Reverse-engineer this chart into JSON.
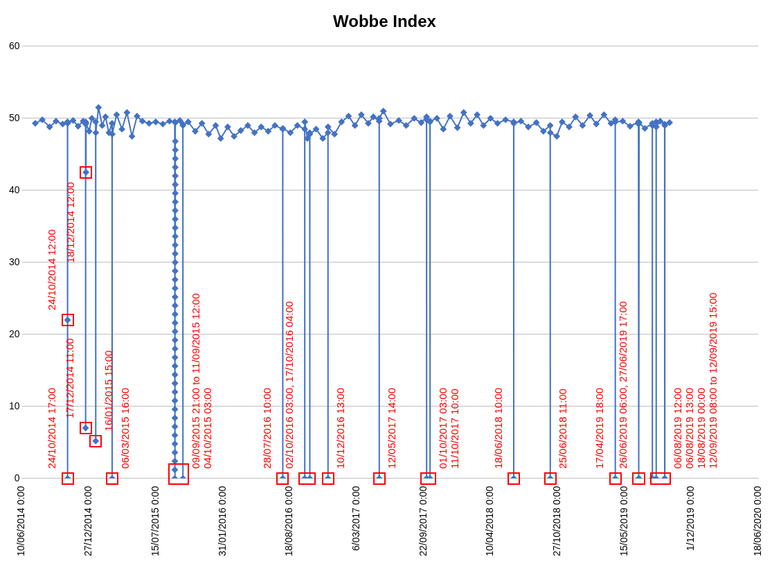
{
  "chart_data": {
    "type": "line",
    "title": "Wobbe Index",
    "xlim": [
      "2014-06-10",
      "2020-06-18"
    ],
    "xticks": [
      {
        "value": "2014-06-10",
        "label": "10/06/2014 0:00"
      },
      {
        "value": "2014-12-27",
        "label": "27/12/2014 0:00"
      },
      {
        "value": "2015-07-15",
        "label": "15/07/2015 0:00"
      },
      {
        "value": "2016-01-31",
        "label": "31/01/2016 0:00"
      },
      {
        "value": "2016-08-18",
        "label": "18/08/2016 0:00"
      },
      {
        "value": "2017-03-06",
        "label": "6/03/2017 0:00"
      },
      {
        "value": "2017-09-22",
        "label": "22/09/2017 0:00"
      },
      {
        "value": "2018-04-10",
        "label": "10/04/2018 0:00"
      },
      {
        "value": "2018-10-27",
        "label": "27/10/2018 0:00"
      },
      {
        "value": "2019-05-15",
        "label": "15/05/2019 0:00"
      },
      {
        "value": "2019-12-01",
        "label": "1/12/2019 0:00"
      },
      {
        "value": "2020-06-18",
        "label": "18/06/2020 0:00"
      }
    ],
    "ylim": [
      0,
      60
    ],
    "yticks": [
      0,
      10,
      20,
      30,
      40,
      50,
      60
    ],
    "grid": "y",
    "legend": false,
    "marker": "diamond",
    "line_style": "solid",
    "series": [
      {
        "color": "#4472c4",
        "x": [
          "2014-07-20",
          "2014-08-10",
          "2014-09-01",
          "2014-09-20",
          "2014-10-10",
          "2014-10-24T08:00",
          "2014-10-24T12:00",
          "2014-10-24T14:00",
          "2014-10-24T17:00",
          "2014-10-24T20:00",
          "2014-11-10",
          "2014-11-25",
          "2014-12-10",
          "2014-12-17T08:00",
          "2014-12-17T11:00",
          "2014-12-17T14:00",
          "2014-12-18T12:00",
          "2014-12-18T16:00",
          "2014-12-28",
          "2015-01-05",
          "2015-01-16T10:00",
          "2015-01-16T15:00",
          "2015-01-16T20:00",
          "2015-01-25",
          "2015-02-05",
          "2015-02-15",
          "2015-02-25",
          "2015-03-06T10:00",
          "2015-03-06T16:00",
          "2015-03-06T22:00",
          "2015-03-20",
          "2015-04-05",
          "2015-04-20",
          "2015-05-05",
          "2015-05-20",
          "2015-06-05",
          "2015-06-25",
          "2015-07-15",
          "2015-08-05",
          "2015-08-25",
          "2015-09-09T18:00",
          "2015-09-09T21:00",
          "2015-09-09T22:00",
          "2015-09-09T23:00",
          "2015-09-10T00:00",
          "2015-09-10T01:00",
          "2015-09-10T02:00",
          "2015-09-10T03:00",
          "2015-09-10T04:00",
          "2015-09-10T05:00",
          "2015-09-10T06:00",
          "2015-09-10T07:00",
          "2015-09-10T08:00",
          "2015-09-10T09:00",
          "2015-09-10T10:00",
          "2015-09-10T11:00",
          "2015-09-10T12:00",
          "2015-09-10T13:00",
          "2015-09-10T14:00",
          "2015-09-10T15:00",
          "2015-09-10T16:00",
          "2015-09-10T17:00",
          "2015-09-10T18:00",
          "2015-09-10T19:00",
          "2015-09-10T20:00",
          "2015-09-10T21:00",
          "2015-09-10T22:00",
          "2015-09-10T23:00",
          "2015-09-11T00:00",
          "2015-09-11T01:00",
          "2015-09-11T02:00",
          "2015-09-11T03:00",
          "2015-09-11T04:00",
          "2015-09-11T05:00",
          "2015-09-11T06:00",
          "2015-09-11T07:00",
          "2015-09-11T08:00",
          "2015-09-11T09:00",
          "2015-09-11T10:00",
          "2015-09-11T11:00",
          "2015-09-11T12:00",
          "2015-09-11T15:00",
          "2015-09-25",
          "2015-10-04T00:00",
          "2015-10-04T03:00",
          "2015-10-04T06:00",
          "2015-10-20",
          "2015-11-10",
          "2015-11-30",
          "2015-12-20",
          "2016-01-10",
          "2016-01-25",
          "2016-02-15",
          "2016-03-05",
          "2016-03-25",
          "2016-04-15",
          "2016-05-05",
          "2016-05-25",
          "2016-06-15",
          "2016-07-05",
          "2016-07-28T06:00",
          "2016-07-28T10:00",
          "2016-07-28T14:00",
          "2016-08-20",
          "2016-09-10",
          "2016-10-02T00:00",
          "2016-10-02T03:00",
          "2016-10-02T06:00",
          "2016-10-10",
          "2016-10-17T00:00",
          "2016-10-17T04:00",
          "2016-10-17T08:00",
          "2016-11-05",
          "2016-11-25",
          "2016-12-10T09:00",
          "2016-12-10T13:00",
          "2016-12-10T17:00",
          "2016-12-30",
          "2017-01-20",
          "2017-02-10",
          "2017-03-01",
          "2017-03-20",
          "2017-04-10",
          "2017-04-25",
          "2017-05-12T10:00",
          "2017-05-12T14:00",
          "2017-05-12T18:00",
          "2017-05-25",
          "2017-06-15",
          "2017-07-10",
          "2017-08-01",
          "2017-08-25",
          "2017-09-15",
          "2017-10-01T00:00",
          "2017-10-01T03:00",
          "2017-10-01T06:00",
          "2017-10-11T06:00",
          "2017-10-11T10:00",
          "2017-10-11T14:00",
          "2017-11-01",
          "2017-11-20",
          "2017-12-10",
          "2018-01-01",
          "2018-01-20",
          "2018-02-10",
          "2018-03-01",
          "2018-03-20",
          "2018-04-10",
          "2018-05-01",
          "2018-05-25",
          "2018-06-18T06:00",
          "2018-06-18T10:00",
          "2018-06-18T14:00",
          "2018-07-10",
          "2018-08-01",
          "2018-08-25",
          "2018-09-15",
          "2018-10-05T07:00",
          "2018-10-05T11:00",
          "2018-10-05T15:00",
          "2018-10-25",
          "2018-11-10",
          "2018-12-01",
          "2018-12-20",
          "2019-01-10",
          "2019-02-01",
          "2019-02-20",
          "2019-03-15",
          "2019-04-05",
          "2019-04-17T14:00",
          "2019-04-17T18:00",
          "2019-04-17T22:00",
          "2019-05-10",
          "2019-06-01",
          "2019-06-26T02:00",
          "2019-06-26T06:00",
          "2019-06-26T12:00",
          "2019-06-27T17:00",
          "2019-06-27T22:00",
          "2019-07-15",
          "2019-08-06T10:00",
          "2019-08-06T12:00",
          "2019-08-06T13:00",
          "2019-08-06T16:00",
          "2019-08-17T20:00",
          "2019-08-18T00:00",
          "2019-08-18T04:00",
          "2019-08-30",
          "2019-09-12T04:00",
          "2019-09-12T08:00",
          "2019-09-12T15:00",
          "2019-09-12T19:00",
          "2019-09-27"
        ],
        "values": [
          49.3,
          49.8,
          48.8,
          49.6,
          49.2,
          49.5,
          22,
          49.4,
          0,
          49.3,
          49.7,
          48.9,
          49.6,
          49.2,
          7,
          49.5,
          42.5,
          49.3,
          48.2,
          50,
          49.5,
          5.2,
          48,
          51.5,
          49,
          50.2,
          48,
          49.3,
          0,
          47.8,
          50.5,
          48.5,
          50.8,
          47.5,
          50.3,
          49.6,
          49.3,
          49.5,
          49.2,
          49.6,
          49.5,
          0,
          1.2,
          2.4,
          3.6,
          4.8,
          6,
          7.2,
          8.4,
          9.6,
          10.8,
          12,
          13.2,
          14.4,
          15.6,
          16.8,
          18,
          19.2,
          20.4,
          21.6,
          22.8,
          24,
          25.2,
          26.4,
          27.6,
          28.8,
          30,
          31.2,
          32.4,
          33.6,
          34.8,
          36,
          37.2,
          38.4,
          39.6,
          40.8,
          42,
          43.2,
          44.4,
          45.6,
          46.8,
          49.4,
          49.7,
          49.2,
          0,
          49,
          49.5,
          48.2,
          49.3,
          47.8,
          49,
          47.2,
          48.8,
          47.5,
          48.3,
          49,
          48,
          48.8,
          48.2,
          49,
          48.5,
          0,
          48.6,
          48,
          49,
          48.5,
          0,
          49.5,
          47.2,
          48,
          0,
          47.8,
          48.5,
          47.2,
          48,
          0,
          48.8,
          47.8,
          49.5,
          50.3,
          49,
          50.5,
          49.3,
          50.2,
          49.6,
          0,
          50,
          51,
          49.2,
          49.7,
          49,
          50,
          49.4,
          50.2,
          0,
          49.8,
          49.5,
          0,
          49.6,
          50,
          48.5,
          50.3,
          48.7,
          50.8,
          49.3,
          50.5,
          49,
          50,
          49.3,
          49.8,
          49.5,
          0,
          49.3,
          49.6,
          48.8,
          49.4,
          48.2,
          49,
          0,
          48,
          47.5,
          49.5,
          48.8,
          50.2,
          49,
          50.4,
          49.2,
          50.5,
          49.3,
          49.8,
          0,
          49.5,
          49.6,
          48.9,
          49.5,
          0,
          49.2,
          0,
          49.4,
          48.6,
          49.3,
          0,
          0,
          49,
          49.5,
          0,
          48.8,
          49.6,
          49.2,
          0,
          0,
          49,
          49.4
        ]
      }
    ],
    "annotations": [
      {
        "text": "24/10/2014 17:00",
        "x": "2014-10-24T17:00",
        "y": 0
      },
      {
        "text": "24/10/2014 12:00",
        "x": "2014-10-24T12:00",
        "y": 22
      },
      {
        "text": "18/12/2014 12:00",
        "x": "2014-12-18T12:00",
        "y": 42.5
      },
      {
        "text": "17/12/2014 11:00",
        "x": "2014-12-17T11:00",
        "y": 7
      },
      {
        "text": "16/01/2015 15:00",
        "x": "2015-01-16T15:00",
        "y": 5.2
      },
      {
        "text": "06/03/2015 16:00",
        "x": "2015-03-06T16:00",
        "y": 0
      },
      {
        "text": "09/09/2015 21:00 to 11/09/2015 12:00\n04/10/2015 03:00",
        "x": "2015-10-04T03:00",
        "y": 0
      },
      {
        "text": "28/07/2016 10:00",
        "x": "2016-07-28T10:00",
        "y": 0
      },
      {
        "text": "02/10/2016 03:00, 17/10/2016 04:00",
        "x": "2016-10-02T03:00",
        "y": 0
      },
      {
        "text": "10/12/2016 13:00",
        "x": "2016-12-10T13:00",
        "y": 0
      },
      {
        "text": "12/05/2017 14:00",
        "x": "2017-05-12T14:00",
        "y": 0
      },
      {
        "text": "01/10/2017 03:00\n11/10/2017 10:00",
        "x": "2017-10-11T10:00",
        "y": 0
      },
      {
        "text": "18/06/2018 10:00",
        "x": "2018-06-18T10:00",
        "y": 0
      },
      {
        "text": "25/06/2018 11:00",
        "x": "2018-10-05T11:00",
        "y": 0
      },
      {
        "text": "17/04/2019 18:00",
        "x": "2019-04-17T18:00",
        "y": 0
      },
      {
        "text": "26/06/2019 06:00, 27/06/2019 17:00",
        "x": "2019-06-26T06:00",
        "y": 0
      },
      {
        "text": "06/08/2019 12:00\n06/08/2019 13:00\n18/08/2019 00:00\n12/09/2019 08:00 to 12/09/2019 15:00",
        "x": "2019-09-12T08:00",
        "y": 0
      }
    ]
  }
}
